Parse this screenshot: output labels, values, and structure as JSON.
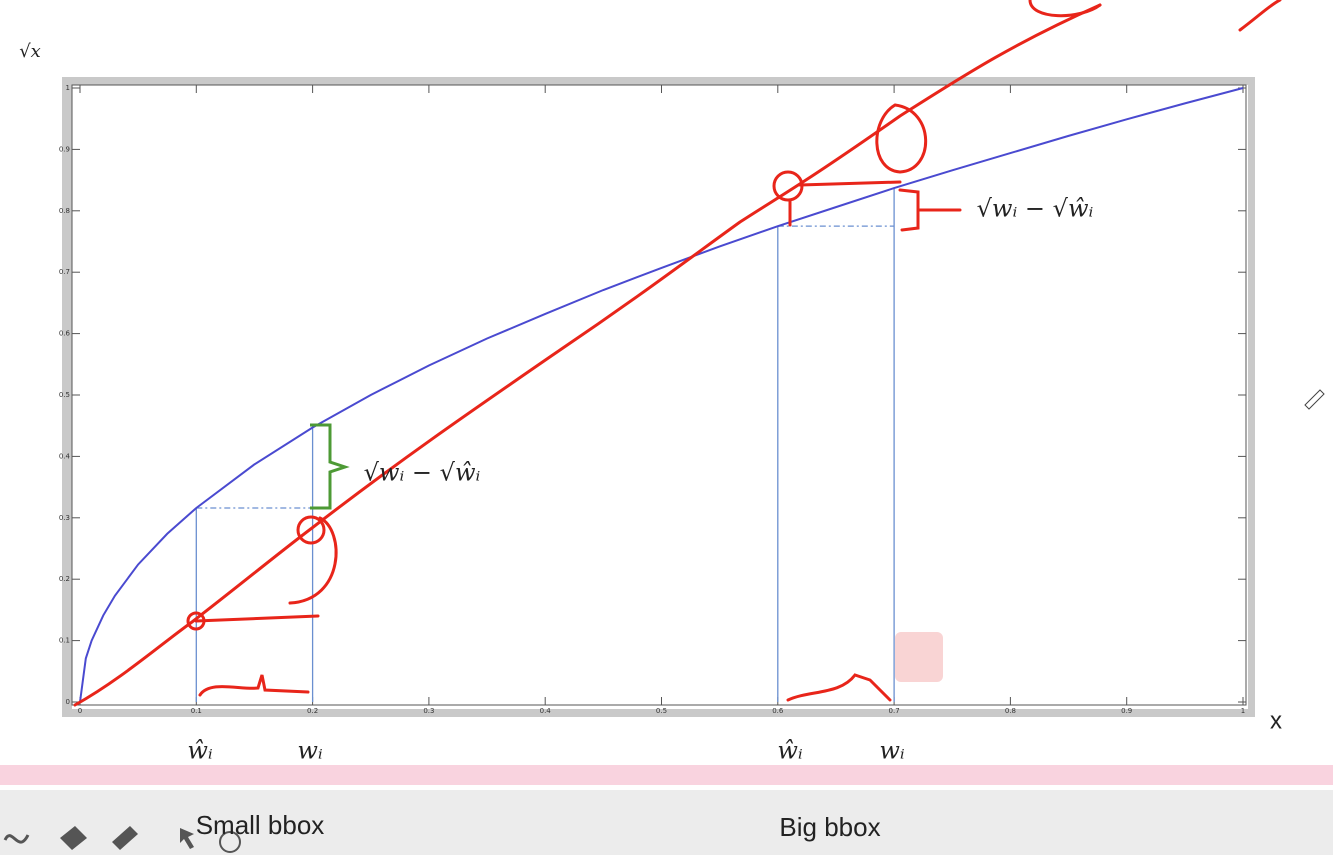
{
  "chart_data": {
    "type": "line",
    "y_label": "√x",
    "x_label": "x",
    "x": [
      0,
      0.005,
      0.01,
      0.02,
      0.03,
      0.05,
      0.075,
      0.1,
      0.15,
      0.2,
      0.25,
      0.3,
      0.35,
      0.4,
      0.45,
      0.5,
      0.55,
      0.6,
      0.65,
      0.7,
      0.75,
      0.8,
      0.85,
      0.9,
      0.95,
      1
    ],
    "series": [
      {
        "color": "#4a4ad0",
        "values": [
          0,
          0.071,
          0.1,
          0.141,
          0.173,
          0.224,
          0.274,
          0.316,
          0.387,
          0.447,
          0.5,
          0.548,
          0.592,
          0.632,
          0.671,
          0.707,
          0.742,
          0.775,
          0.806,
          0.837,
          0.866,
          0.894,
          0.922,
          0.949,
          0.975,
          1
        ]
      }
    ],
    "xlim": [
      0,
      1
    ],
    "ylim": [
      0,
      1
    ],
    "xticks": [
      0,
      0.1,
      0.2,
      0.3,
      0.4,
      0.5,
      0.6,
      0.7,
      0.8,
      0.9,
      1
    ],
    "yticks": [
      0,
      0.1,
      0.2,
      0.3,
      0.4,
      0.5,
      0.6,
      0.7,
      0.8,
      0.9,
      1
    ],
    "grid": false,
    "guides": {
      "x": [
        0.1,
        0.2,
        0.6,
        0.7
      ],
      "y": [
        0.316,
        0.447,
        0.775,
        0.837
      ],
      "color": "#6a8fd0"
    },
    "annotations": [
      "ŵᵢ",
      "wᵢ",
      "ŵᵢ",
      "wᵢ",
      "√wᵢ − √ŵᵢ",
      "√wᵢ − √ŵᵢ"
    ],
    "captions": [
      "Small bbox",
      "Big bbox"
    ]
  }
}
